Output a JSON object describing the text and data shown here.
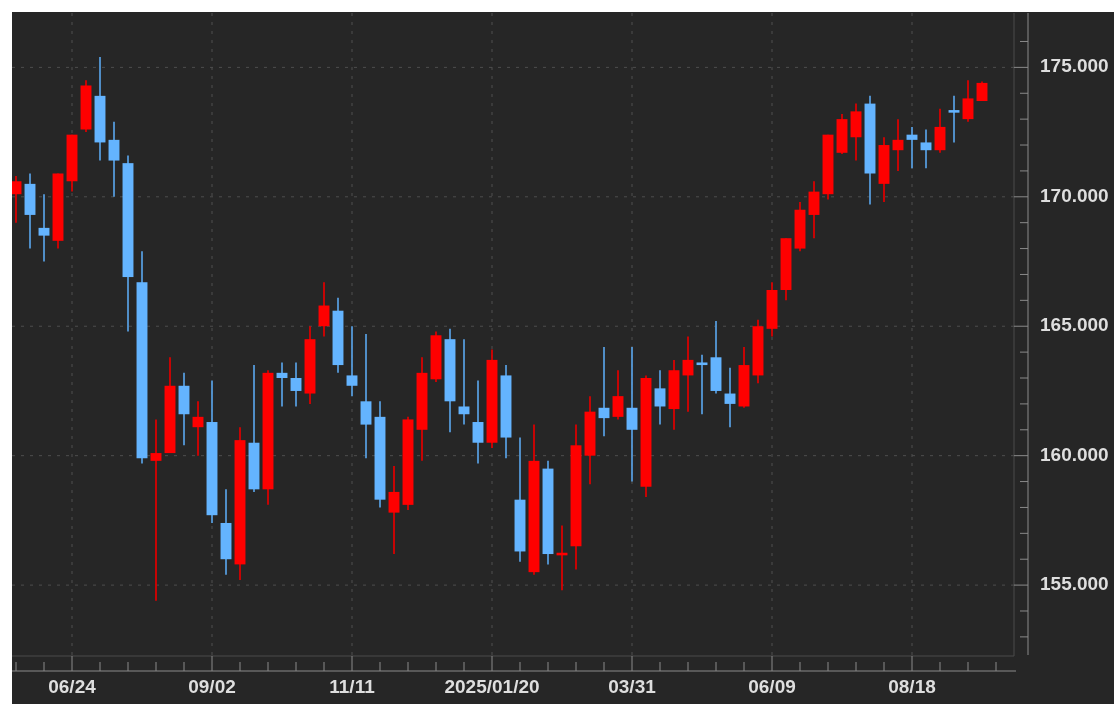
{
  "chart_data": {
    "type": "candlestick",
    "x": [
      "2024-05-27",
      "2024-06-03",
      "2024-06-10",
      "2024-06-17",
      "2024-06-24",
      "2024-07-01",
      "2024-07-08",
      "2024-07-15",
      "2024-07-22",
      "2024-07-29",
      "2024-08-05",
      "2024-08-12",
      "2024-08-19",
      "2024-08-26",
      "2024-09-02",
      "2024-09-09",
      "2024-09-16",
      "2024-09-23",
      "2024-09-30",
      "2024-10-07",
      "2024-10-14",
      "2024-10-21",
      "2024-10-28",
      "2024-11-04",
      "2024-11-11",
      "2024-11-18",
      "2024-11-25",
      "2024-12-02",
      "2024-12-09",
      "2024-12-16",
      "2024-12-23",
      "2024-12-30",
      "2025-01-06",
      "2025-01-13",
      "2025-01-20",
      "2025-01-27",
      "2025-02-03",
      "2025-02-10",
      "2025-02-17",
      "2025-02-24",
      "2025-03-03",
      "2025-03-10",
      "2025-03-17",
      "2025-03-24",
      "2025-03-31",
      "2025-04-07",
      "2025-04-14",
      "2025-04-21",
      "2025-04-28",
      "2025-05-05",
      "2025-05-12",
      "2025-05-19",
      "2025-05-26",
      "2025-06-02",
      "2025-06-09",
      "2025-06-16",
      "2025-06-23",
      "2025-06-30",
      "2025-07-07",
      "2025-07-14",
      "2025-07-21",
      "2025-07-28",
      "2025-08-04",
      "2025-08-11",
      "2025-08-18",
      "2025-08-25",
      "2025-09-01",
      "2025-09-08",
      "2025-09-15",
      "2025-09-22"
    ],
    "ohlc": [
      [
        170.1,
        170.8,
        169.0,
        170.6
      ],
      [
        170.5,
        170.9,
        168.0,
        169.3
      ],
      [
        168.8,
        170.1,
        167.5,
        168.5
      ],
      [
        168.3,
        170.9,
        168.0,
        170.9
      ],
      [
        170.6,
        172.4,
        170.2,
        172.4
      ],
      [
        172.6,
        174.5,
        172.5,
        174.3
      ],
      [
        173.9,
        175.4,
        171.4,
        172.1
      ],
      [
        172.2,
        172.9,
        170.0,
        171.4
      ],
      [
        171.3,
        171.6,
        164.8,
        166.9
      ],
      [
        166.7,
        167.9,
        159.7,
        159.9
      ],
      [
        159.8,
        161.4,
        154.4,
        160.1
      ],
      [
        160.1,
        163.8,
        160.1,
        162.7
      ],
      [
        162.7,
        163.2,
        160.4,
        161.6
      ],
      [
        161.1,
        162.1,
        160.0,
        161.5
      ],
      [
        161.3,
        162.9,
        157.4,
        157.7
      ],
      [
        157.4,
        158.7,
        155.4,
        156.0
      ],
      [
        155.8,
        161.1,
        155.2,
        160.6
      ],
      [
        160.5,
        163.5,
        158.6,
        158.7
      ],
      [
        158.7,
        163.3,
        158.1,
        163.2
      ],
      [
        163.2,
        163.6,
        161.9,
        163.0
      ],
      [
        163.0,
        163.6,
        161.9,
        162.5
      ],
      [
        162.4,
        165.0,
        162.0,
        164.5
      ],
      [
        165.0,
        166.7,
        164.6,
        165.8
      ],
      [
        165.6,
        166.1,
        163.2,
        163.5
      ],
      [
        163.1,
        165.0,
        162.3,
        162.7
      ],
      [
        162.1,
        164.7,
        159.9,
        161.2
      ],
      [
        161.5,
        162.1,
        158.0,
        158.3
      ],
      [
        157.8,
        159.6,
        156.2,
        158.6
      ],
      [
        158.1,
        161.5,
        157.9,
        161.4
      ],
      [
        161.0,
        163.8,
        159.8,
        163.2
      ],
      [
        162.95,
        164.8,
        162.85,
        164.65
      ],
      [
        164.5,
        164.9,
        160.9,
        162.1
      ],
      [
        161.9,
        164.5,
        161.2,
        161.6
      ],
      [
        161.3,
        162.9,
        159.7,
        160.5
      ],
      [
        160.5,
        164.1,
        160.3,
        163.7
      ],
      [
        163.1,
        163.5,
        159.9,
        160.7
      ],
      [
        158.3,
        160.7,
        155.9,
        156.3
      ],
      [
        155.5,
        161.2,
        155.4,
        159.8
      ],
      [
        159.5,
        159.8,
        155.8,
        156.2
      ],
      [
        156.15,
        157.3,
        154.8,
        156.25
      ],
      [
        156.5,
        161.2,
        155.6,
        160.4
      ],
      [
        160.0,
        162.3,
        158.9,
        161.7
      ],
      [
        161.85,
        164.2,
        160.75,
        161.45
      ],
      [
        161.5,
        163.3,
        161.4,
        162.3
      ],
      [
        161.85,
        164.2,
        159.0,
        161.0
      ],
      [
        158.8,
        163.1,
        158.4,
        163.0
      ],
      [
        162.6,
        163.3,
        161.2,
        161.9
      ],
      [
        161.8,
        163.7,
        161.0,
        163.3
      ],
      [
        163.1,
        164.6,
        161.7,
        163.7
      ],
      [
        163.6,
        163.9,
        161.6,
        163.5
      ],
      [
        163.8,
        165.2,
        162.4,
        162.5
      ],
      [
        162.4,
        163.4,
        161.1,
        162.0
      ],
      [
        161.9,
        164.2,
        161.85,
        163.5
      ],
      [
        163.1,
        165.25,
        162.8,
        165.0
      ],
      [
        164.9,
        166.7,
        164.6,
        166.4
      ],
      [
        166.4,
        168.4,
        166.0,
        168.4
      ],
      [
        168.0,
        169.8,
        167.9,
        169.5
      ],
      [
        169.3,
        170.6,
        168.4,
        170.2
      ],
      [
        170.1,
        172.4,
        169.9,
        172.4
      ],
      [
        171.7,
        173.2,
        171.65,
        173.0
      ],
      [
        172.3,
        173.6,
        171.4,
        173.3
      ],
      [
        173.6,
        173.9,
        169.7,
        170.9
      ],
      [
        170.5,
        172.3,
        169.8,
        172.0
      ],
      [
        171.8,
        173.0,
        171.0,
        172.2
      ],
      [
        172.4,
        172.7,
        171.1,
        172.2
      ],
      [
        172.1,
        172.6,
        171.1,
        171.8
      ],
      [
        171.8,
        173.4,
        171.7,
        172.7
      ],
      [
        173.35,
        173.9,
        172.1,
        173.25
      ],
      [
        173.0,
        174.5,
        172.9,
        173.8
      ],
      [
        173.7,
        174.45,
        173.7,
        174.4
      ]
    ],
    "colors": [
      "#ff0000",
      "#64b4ff",
      "#64b4ff",
      "#ff0000",
      "#ff0000",
      "#ff0000",
      "#64b4ff",
      "#64b4ff",
      "#64b4ff",
      "#64b4ff",
      "#ff0000",
      "#ff0000",
      "#64b4ff",
      "#ff0000",
      "#64b4ff",
      "#64b4ff",
      "#ff0000",
      "#64b4ff",
      "#ff0000",
      "#64b4ff",
      "#64b4ff",
      "#ff0000",
      "#ff0000",
      "#64b4ff",
      "#64b4ff",
      "#64b4ff",
      "#64b4ff",
      "#ff0000",
      "#ff0000",
      "#ff0000",
      "#ff0000",
      "#64b4ff",
      "#64b4ff",
      "#64b4ff",
      "#ff0000",
      "#64b4ff",
      "#64b4ff",
      "#ff0000",
      "#64b4ff",
      "#ff0000",
      "#ff0000",
      "#ff0000",
      "#64b4ff",
      "#ff0000",
      "#64b4ff",
      "#ff0000",
      "#64b4ff",
      "#ff0000",
      "#ff0000",
      "#64b4ff",
      "#64b4ff",
      "#64b4ff",
      "#ff0000",
      "#ff0000",
      "#ff0000",
      "#ff0000",
      "#ff0000",
      "#ff0000",
      "#ff0000",
      "#ff0000",
      "#ff0000",
      "#64b4ff",
      "#ff0000",
      "#ff0000",
      "#64b4ff",
      "#64b4ff",
      "#ff0000",
      "#64b4ff",
      "#ff0000",
      "#ff0000"
    ],
    "xlim": [
      "2024-05-25",
      "2025-10-08"
    ],
    "ylim": [
      152.3,
      177.1
    ],
    "xticks": [
      {
        "value": "2024-05-27",
        "label": null
      },
      {
        "value": "2024-06-10",
        "label": null
      },
      {
        "value": "2024-06-24",
        "label": "06/24"
      },
      {
        "value": "2024-07-08",
        "label": null
      },
      {
        "value": "2024-07-22",
        "label": null
      },
      {
        "value": "2024-08-05",
        "label": null
      },
      {
        "value": "2024-08-19",
        "label": null
      },
      {
        "value": "2024-09-02",
        "label": "09/02"
      },
      {
        "value": "2024-09-16",
        "label": null
      },
      {
        "value": "2024-09-30",
        "label": null
      },
      {
        "value": "2024-10-14",
        "label": null
      },
      {
        "value": "2024-10-28",
        "label": null
      },
      {
        "value": "2024-11-11",
        "label": "11/11"
      },
      {
        "value": "2024-11-25",
        "label": null
      },
      {
        "value": "2024-12-09",
        "label": null
      },
      {
        "value": "2024-12-23",
        "label": null
      },
      {
        "value": "2025-01-06",
        "label": null
      },
      {
        "value": "2025-01-20",
        "label": "2025/01/20"
      },
      {
        "value": "2025-02-03",
        "label": null
      },
      {
        "value": "2025-02-17",
        "label": null
      },
      {
        "value": "2025-03-03",
        "label": null
      },
      {
        "value": "2025-03-17",
        "label": null
      },
      {
        "value": "2025-03-31",
        "label": "03/31"
      },
      {
        "value": "2025-04-14",
        "label": null
      },
      {
        "value": "2025-04-28",
        "label": null
      },
      {
        "value": "2025-05-12",
        "label": null
      },
      {
        "value": "2025-05-26",
        "label": null
      },
      {
        "value": "2025-06-09",
        "label": "06/09"
      },
      {
        "value": "2025-06-23",
        "label": null
      },
      {
        "value": "2025-07-07",
        "label": null
      },
      {
        "value": "2025-07-21",
        "label": null
      },
      {
        "value": "2025-08-04",
        "label": null
      },
      {
        "value": "2025-08-18",
        "label": "08/18"
      },
      {
        "value": "2025-09-01",
        "label": null
      },
      {
        "value": "2025-09-15",
        "label": null
      },
      {
        "value": "2025-09-29",
        "label": null
      }
    ],
    "yticks": [
      {
        "value": 153,
        "label": null
      },
      {
        "value": 154,
        "label": null
      },
      {
        "value": 155,
        "label": "155.000"
      },
      {
        "value": 156,
        "label": null
      },
      {
        "value": 157,
        "label": null
      },
      {
        "value": 158,
        "label": null
      },
      {
        "value": 159,
        "label": null
      },
      {
        "value": 160,
        "label": "160.000"
      },
      {
        "value": 161,
        "label": null
      },
      {
        "value": 162,
        "label": null
      },
      {
        "value": 163,
        "label": null
      },
      {
        "value": 164,
        "label": null
      },
      {
        "value": 165,
        "label": "165.000"
      },
      {
        "value": 166,
        "label": null
      },
      {
        "value": 167,
        "label": null
      },
      {
        "value": 168,
        "label": null
      },
      {
        "value": 169,
        "label": null
      },
      {
        "value": 170,
        "label": "170.000"
      },
      {
        "value": 171,
        "label": null
      },
      {
        "value": 172,
        "label": null
      },
      {
        "value": 173,
        "label": null
      },
      {
        "value": 174,
        "label": null
      },
      {
        "value": 175,
        "label": "175.000"
      },
      {
        "value": 176,
        "label": null
      }
    ],
    "grid": true
  }
}
